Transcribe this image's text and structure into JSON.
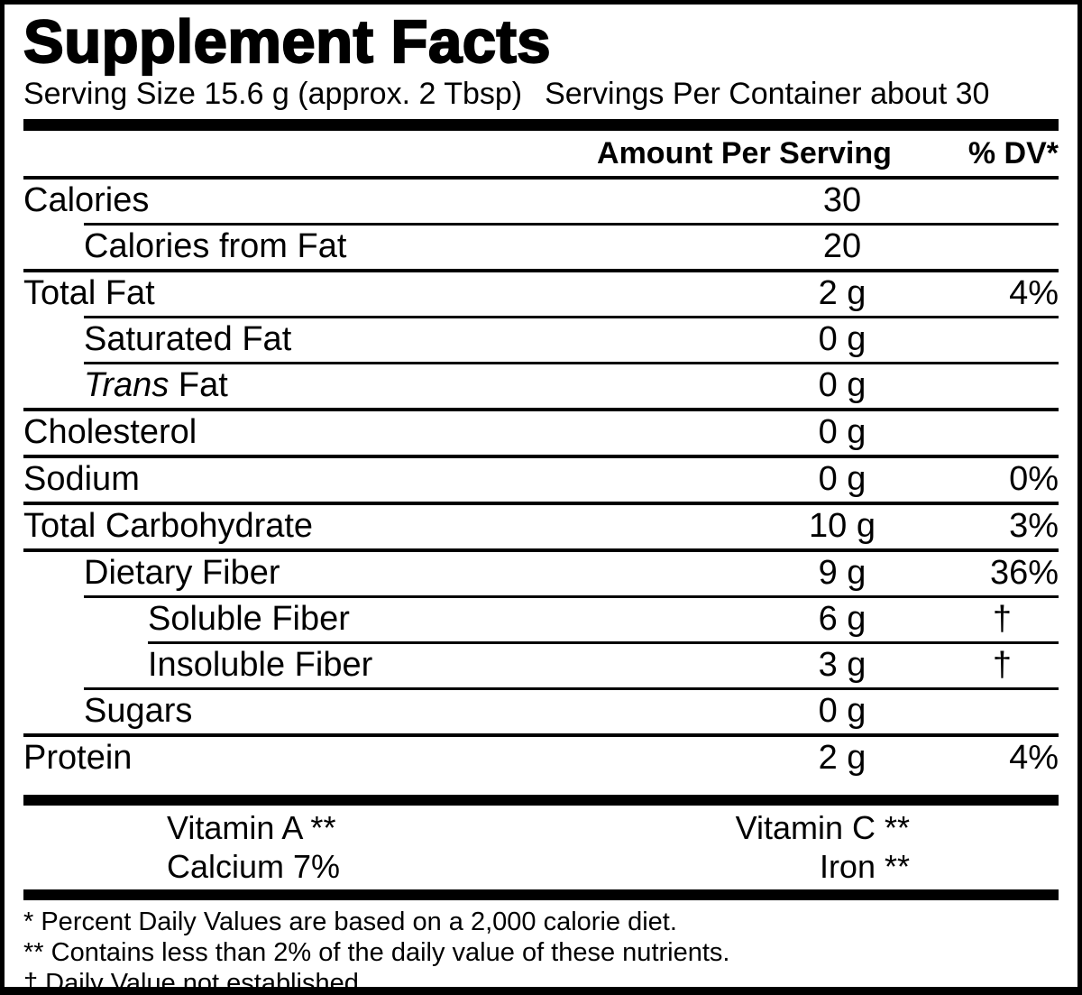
{
  "label": {
    "title": "Supplement Facts",
    "serving_size": "Serving Size 15.6 g (approx. 2 Tbsp)",
    "servings_per_container": "Servings Per Container about 30",
    "header": {
      "amount": "Amount Per Serving",
      "dv": "% DV*"
    },
    "rows": [
      {
        "name": [
          {
            "t": "Calories"
          }
        ],
        "amount": "30",
        "dv": "",
        "indent": 0,
        "rule": "full"
      },
      {
        "name": [
          {
            "t": "Calories from Fat"
          }
        ],
        "amount": "20",
        "dv": "",
        "indent": 1,
        "rule": "inset1"
      },
      {
        "name": [
          {
            "t": "Total Fat"
          }
        ],
        "amount": "2 g",
        "dv": "4%",
        "indent": 0,
        "rule": "full"
      },
      {
        "name": [
          {
            "t": "Saturated Fat"
          }
        ],
        "amount": "0 g",
        "dv": "",
        "indent": 1,
        "rule": "inset1"
      },
      {
        "name": [
          {
            "t": "Trans",
            "italic": true
          },
          {
            "t": " Fat"
          }
        ],
        "amount": "0 g",
        "dv": "",
        "indent": 1,
        "rule": "inset1"
      },
      {
        "name": [
          {
            "t": "Cholesterol"
          }
        ],
        "amount": "0 g",
        "dv": "",
        "indent": 0,
        "rule": "full"
      },
      {
        "name": [
          {
            "t": "Sodium"
          }
        ],
        "amount": "0 g",
        "dv": "0%",
        "indent": 0,
        "rule": "full"
      },
      {
        "name": [
          {
            "t": "Total Carbohydrate"
          }
        ],
        "amount": "10 g",
        "dv": "3%",
        "indent": 0,
        "rule": "full"
      },
      {
        "name": [
          {
            "t": "Dietary Fiber"
          }
        ],
        "amount": "9 g",
        "dv": "36%",
        "indent": 1,
        "rule": "full"
      },
      {
        "name": [
          {
            "t": "Soluble Fiber"
          }
        ],
        "amount": "6 g",
        "dv": "†",
        "indent": 2,
        "rule": "inset1"
      },
      {
        "name": [
          {
            "t": "Insoluble Fiber"
          }
        ],
        "amount": "3 g",
        "dv": "†",
        "indent": 2,
        "rule": "inset2"
      },
      {
        "name": [
          {
            "t": "Sugars"
          }
        ],
        "amount": "0 g",
        "dv": "",
        "indent": 1,
        "rule": "inset1"
      },
      {
        "name": [
          {
            "t": "Protein"
          }
        ],
        "amount": "2 g",
        "dv": "4%",
        "indent": 0,
        "rule": "full"
      }
    ],
    "micronutrients": [
      {
        "left": "Vitamin A **",
        "right": "Vitamin C **"
      },
      {
        "left": "Calcium 7%",
        "right": "Iron **"
      }
    ],
    "footnotes": [
      "* Percent Daily Values are based on a 2,000 calorie diet.",
      "** Contains less than 2% of the daily value of these nutrients.",
      "† Daily Value not established."
    ],
    "colors": {
      "ink": "#000000",
      "paper": "#ffffff"
    }
  }
}
